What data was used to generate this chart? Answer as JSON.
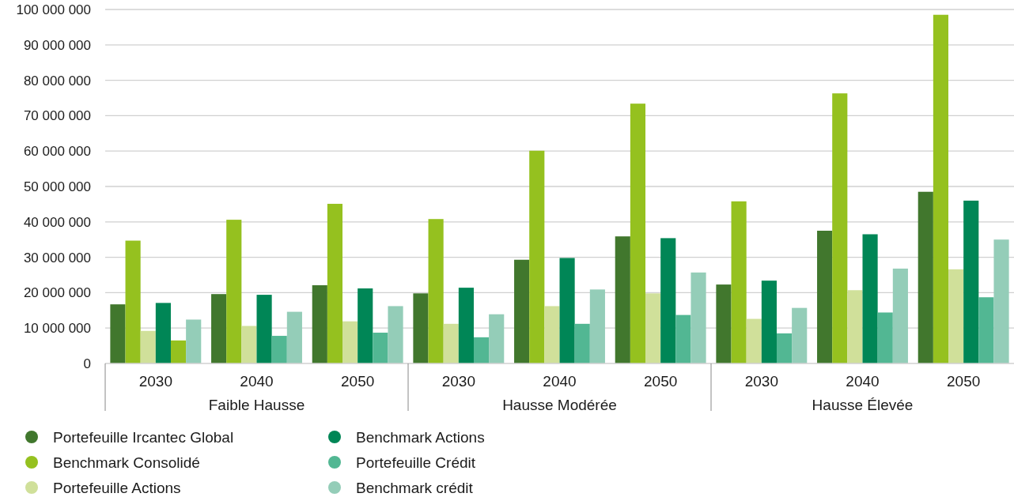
{
  "chart_data": {
    "type": "bar",
    "categories": [
      "2030",
      "2040",
      "2050",
      "2030",
      "2040",
      "2050",
      "2030",
      "2040",
      "2050"
    ],
    "annotations": [
      "Faible Hausse",
      "Hausse Modérée",
      "Hausse Élevée"
    ],
    "series": [
      {
        "name": "Portefeuille Ircantec Global",
        "color": "#41772d",
        "values": [
          16700000.0,
          19600000.0,
          22100000.0,
          19800000.0,
          29300000.0,
          35900000.0,
          22300000.0,
          37500000.0,
          48500000.0
        ]
      },
      {
        "name": "Benchmark Consolidé",
        "color": "#95c11f",
        "values": [
          34700000.0,
          40600000.0,
          45100000.0,
          40800000.0,
          60100000.0,
          73400000.0,
          45800000.0,
          76300000.0,
          98500000.0
        ]
      },
      {
        "name": "Portefeuille Actions",
        "color": "#d0e09a",
        "values": [
          9200000.0,
          10600000.0,
          11900000.0,
          11200000.0,
          16200000.0,
          19800000.0,
          12600000.0,
          20700000.0,
          26600000.0
        ]
      },
      {
        "name": "Benchmark Actions",
        "color": "#008656",
        "values": [
          17100000.0,
          19400000.0,
          21200000.0,
          21400000.0,
          29800000.0,
          35400000.0,
          23400000.0,
          36500000.0,
          46000000.0
        ]
      },
      {
        "name": "Portefeuille Crédit",
        "color": "#52b793",
        "colors": [
          "#95c11f",
          "#52b793",
          "#52b793",
          "#52b793",
          "#52b793",
          "#52b793",
          "#52b793",
          "#52b793",
          "#52b793"
        ],
        "values": [
          6500000.0,
          7800000.0,
          8700000.0,
          7400000.0,
          11200000.0,
          13700000.0,
          8500000.0,
          14400000.0,
          18700000.0
        ]
      },
      {
        "name": "Benchmark crédit",
        "color": "#94cdb8",
        "values": [
          12400000.0,
          14600000.0,
          16200000.0,
          13900000.0,
          20900000.0,
          25700000.0,
          15700000.0,
          26800000.0,
          35000000.0
        ]
      }
    ],
    "ylim": [
      0,
      100000000
    ],
    "yticks": [
      0,
      {
        "value": 10000000,
        "label": "10 000 000"
      },
      {
        "value": 20000000,
        "label": "20 000 000"
      },
      {
        "value": 30000000,
        "label": "30 000 000"
      },
      {
        "value": 40000000,
        "label": "40 000 000"
      },
      {
        "value": 50000000,
        "label": "50 000 000"
      },
      {
        "value": 60000000,
        "label": "60 000 000"
      },
      {
        "value": 70000000,
        "label": "70 000 000"
      },
      {
        "value": 80000000,
        "label": "80 000 000"
      },
      {
        "value": 90000000,
        "label": "90 000 000"
      },
      {
        "value": 100000000,
        "label": "100 000 000"
      }
    ],
    "grid": "y",
    "legend": "bottom",
    "marker": "circle"
  }
}
